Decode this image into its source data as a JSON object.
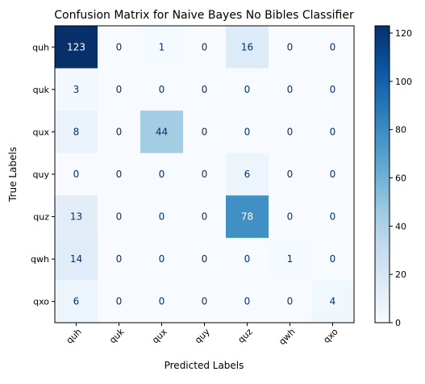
{
  "chart_data": {
    "type": "heatmap",
    "title": "Confusion Matrix for Naive Bayes No Bibles Classifier",
    "xlabel": "Predicted Labels",
    "ylabel": "True Labels",
    "x_categories": [
      "quh",
      "quk",
      "qux",
      "quy",
      "quz",
      "qwh",
      "qxo"
    ],
    "y_categories": [
      "quh",
      "quk",
      "qux",
      "quy",
      "quz",
      "qwh",
      "qxo"
    ],
    "values": [
      [
        123,
        0,
        1,
        0,
        16,
        0,
        0
      ],
      [
        3,
        0,
        0,
        0,
        0,
        0,
        0
      ],
      [
        8,
        0,
        44,
        0,
        0,
        0,
        0
      ],
      [
        0,
        0,
        0,
        0,
        6,
        0,
        0
      ],
      [
        13,
        0,
        0,
        0,
        78,
        0,
        0
      ],
      [
        14,
        0,
        0,
        0,
        0,
        1,
        0
      ],
      [
        6,
        0,
        0,
        0,
        0,
        0,
        4
      ]
    ],
    "colormap": "Blues",
    "colorbar": {
      "ticks": [
        0,
        20,
        40,
        60,
        80,
        100,
        120
      ],
      "vmin": 0,
      "vmax": 123
    },
    "text_color_light": "#ffffff",
    "text_color_dark": "#08306b"
  }
}
